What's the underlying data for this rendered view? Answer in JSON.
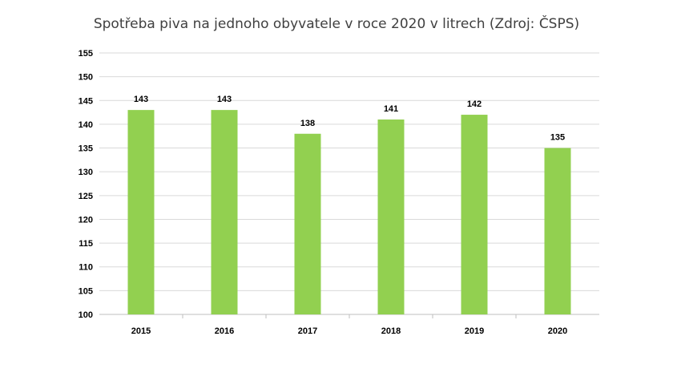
{
  "chart_data": {
    "type": "bar",
    "title": "Spotřeba piva na jednoho obyvatele v roce 2020 v litrech (Zdroj: ČSPS)",
    "categories": [
      "2015",
      "2016",
      "2017",
      "2018",
      "2019",
      "2020"
    ],
    "values": [
      143,
      143,
      138,
      141,
      142,
      135
    ],
    "data_labels": [
      "143",
      "143",
      "138",
      "141",
      "142",
      "135"
    ],
    "ylim": [
      100,
      155
    ],
    "yticks": [
      100,
      105,
      110,
      115,
      120,
      125,
      130,
      135,
      140,
      145,
      150,
      155
    ],
    "grid": true,
    "legend": "none",
    "colors": {
      "bar": "#92d050",
      "grid": "#d9d9d9",
      "text": "#000000"
    }
  }
}
